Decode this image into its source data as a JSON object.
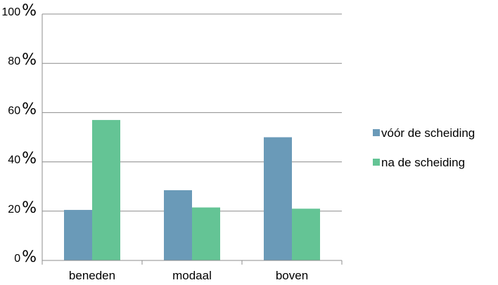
{
  "chart_data": {
    "type": "bar",
    "categories": [
      "beneden",
      "modaal",
      "boven"
    ],
    "series": [
      {
        "name": "vóór de scheiding",
        "values": [
          20.5,
          28.5,
          50
        ],
        "color": "#6a9ab8"
      },
      {
        "name": "na de scheiding",
        "values": [
          57,
          21.5,
          21
        ],
        "color": "#64c495"
      }
    ],
    "ylim": [
      0,
      100
    ],
    "yticks": [
      {
        "num": "0",
        "unit": "%"
      },
      {
        "num": "20",
        "unit": "%"
      },
      {
        "num": "40",
        "unit": "%"
      },
      {
        "num": "60",
        "unit": "%"
      },
      {
        "num": "80",
        "unit": "%"
      },
      {
        "num": "100",
        "unit": "%"
      }
    ],
    "grid": true,
    "legend_position": "right",
    "title": "",
    "xlabel": "",
    "ylabel": ""
  }
}
